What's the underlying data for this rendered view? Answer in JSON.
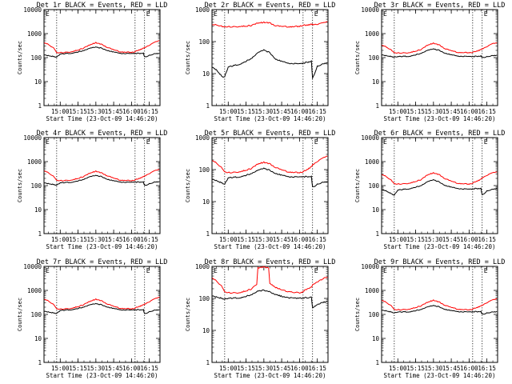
{
  "figure": {
    "background": "#ffffff",
    "events_color": "#000000",
    "lld_color": "#ff0000"
  },
  "chart_data": [
    {
      "type": "line",
      "title": "Det 1r BLACK = Events, RED = LLD",
      "xlabel": "Start Time (23-Oct-09 14:46:20)",
      "ylabel": "Counts/sec",
      "yscale": "log",
      "ylim": [
        1,
        10000
      ],
      "grid": false,
      "xlim": [
        "14:46:20",
        "16:24:00"
      ],
      "x_ticks": [
        "15:00",
        "15:15",
        "15:30",
        "15:45",
        "16:00",
        "16:15"
      ],
      "y_ticks": [
        "1",
        "10",
        "100",
        "1000",
        "10000"
      ],
      "vlines": [
        "14:57:00",
        "16:03:00",
        "16:11:00"
      ],
      "corner_mark": "E",
      "x": [
        "14:46:30",
        "14:50:00",
        "14:55:00",
        "14:57:00",
        "15:00:00",
        "15:10:00",
        "15:20:00",
        "15:25:00",
        "15:30:00",
        "15:35:00",
        "15:40:00",
        "15:50:00",
        "16:00:00",
        "16:03:00",
        "16:05:00",
        "16:10:00",
        "16:11:00",
        "16:15:00",
        "16:20:00",
        "16:23:30"
      ],
      "series": [
        {
          "name": "Events",
          "values": [
            130,
            120,
            110,
            105,
            140,
            155,
            195,
            245,
            275,
            245,
            195,
            150,
            145,
            150,
            150,
            150,
            105,
            125,
            145,
            150
          ]
        },
        {
          "name": "LLD",
          "values": [
            430,
            350,
            240,
            160,
            160,
            175,
            250,
            340,
            420,
            350,
            260,
            175,
            165,
            175,
            200,
            240,
            260,
            330,
            440,
            500
          ]
        }
      ]
    },
    {
      "type": "line",
      "title": "Det 2r BLACK = Events, RED = LLD",
      "xlabel": "Start Time (23-Oct-09 14:46:20)",
      "ylabel": "Counts/sec",
      "yscale": "log",
      "ylim": [
        1,
        1000
      ],
      "grid": false,
      "xlim": [
        "14:46:20",
        "16:24:00"
      ],
      "x_ticks": [
        "15:00",
        "15:15",
        "15:30",
        "15:45",
        "16:00",
        "16:15"
      ],
      "y_ticks": [
        "1",
        "10",
        "100",
        "1000"
      ],
      "vlines": [
        "14:57:00",
        "16:03:00",
        "16:11:00"
      ],
      "corner_mark": "E",
      "x": [
        "14:46:30",
        "14:50:00",
        "14:55:00",
        "14:57:00",
        "15:00:00",
        "15:10:00",
        "15:20:00",
        "15:25:00",
        "15:30:00",
        "15:35:00",
        "15:40:00",
        "15:50:00",
        "16:00:00",
        "16:03:00",
        "16:05:00",
        "16:10:00",
        "16:11:00",
        "16:15:00",
        "16:20:00",
        "16:23:30"
      ],
      "series": [
        {
          "name": "Events",
          "values": [
            16,
            13,
            8,
            8,
            16,
            20,
            30,
            45,
            55,
            45,
            28,
            21,
            20,
            21,
            22,
            24,
            7,
            17,
            20,
            22
          ]
        },
        {
          "name": "LLD",
          "values": [
            350,
            330,
            300,
            290,
            290,
            295,
            320,
            380,
            400,
            380,
            310,
            290,
            300,
            320,
            330,
            340,
            340,
            350,
            380,
            410
          ]
        }
      ]
    },
    {
      "type": "line",
      "title": "Det 3r BLACK = Events, RED = LLD",
      "xlabel": "Start Time (23-Oct-09 14:46:20)",
      "ylabel": "Counts/sec",
      "yscale": "log",
      "ylim": [
        1,
        10000
      ],
      "grid": false,
      "xlim": [
        "14:46:20",
        "16:24:00"
      ],
      "x_ticks": [
        "15:00",
        "15:15",
        "15:30",
        "15:45",
        "16:00",
        "16:15"
      ],
      "y_ticks": [
        "1",
        "10",
        "100",
        "1000",
        "10000"
      ],
      "vlines": [
        "14:57:00",
        "16:03:00",
        "16:11:00"
      ],
      "corner_mark": "E",
      "x": [
        "14:46:30",
        "14:50:00",
        "14:55:00",
        "14:57:00",
        "15:00:00",
        "15:10:00",
        "15:20:00",
        "15:25:00",
        "15:30:00",
        "15:35:00",
        "15:40:00",
        "15:50:00",
        "16:00:00",
        "16:03:00",
        "16:05:00",
        "16:10:00",
        "16:11:00",
        "16:15:00",
        "16:20:00",
        "16:23:30"
      ],
      "series": [
        {
          "name": "Events",
          "values": [
            130,
            120,
            110,
            105,
            110,
            115,
            150,
            200,
            230,
            200,
            150,
            115,
            110,
            110,
            112,
            115,
            100,
            110,
            120,
            125
          ]
        },
        {
          "name": "LLD",
          "values": [
            340,
            280,
            200,
            160,
            155,
            160,
            220,
            330,
            400,
            330,
            230,
            165,
            160,
            165,
            180,
            210,
            230,
            290,
            380,
            400
          ]
        }
      ]
    },
    {
      "type": "line",
      "title": "Det 4r BLACK = Events, RED = LLD",
      "xlabel": "Start Time (23-Oct-09 14:46:20)",
      "ylabel": "Counts/sec",
      "yscale": "log",
      "ylim": [
        1,
        10000
      ],
      "grid": false,
      "xlim": [
        "14:46:20",
        "16:24:00"
      ],
      "x_ticks": [
        "15:00",
        "15:15",
        "15:30",
        "15:45",
        "16:00",
        "16:15"
      ],
      "y_ticks": [
        "1",
        "10",
        "100",
        "1000",
        "10000"
      ],
      "vlines": [
        "14:57:00",
        "16:03:00",
        "16:11:00"
      ],
      "corner_mark": "E",
      "x": [
        "14:46:30",
        "14:50:00",
        "14:55:00",
        "14:57:00",
        "15:00:00",
        "15:10:00",
        "15:20:00",
        "15:25:00",
        "15:30:00",
        "15:35:00",
        "15:40:00",
        "15:50:00",
        "16:00:00",
        "16:03:00",
        "16:05:00",
        "16:10:00",
        "16:11:00",
        "16:15:00",
        "16:20:00",
        "16:23:30"
      ],
      "series": [
        {
          "name": "Events",
          "values": [
            130,
            120,
            110,
            105,
            130,
            140,
            180,
            235,
            265,
            235,
            180,
            140,
            135,
            140,
            140,
            140,
            100,
            120,
            140,
            145
          ]
        },
        {
          "name": "LLD",
          "values": [
            430,
            340,
            230,
            165,
            160,
            170,
            240,
            330,
            400,
            330,
            250,
            170,
            160,
            170,
            190,
            230,
            250,
            320,
            420,
            460
          ]
        }
      ]
    },
    {
      "type": "line",
      "title": "Det 5r BLACK = Events, RED = LLD",
      "xlabel": "Start Time (23-Oct-09 14:46:20)",
      "ylabel": "Counts/sec",
      "yscale": "log",
      "ylim": [
        1,
        1000
      ],
      "grid": false,
      "xlim": [
        "14:46:20",
        "16:24:00"
      ],
      "x_ticks": [
        "15:00",
        "15:15",
        "15:30",
        "15:45",
        "16:00",
        "16:15"
      ],
      "y_ticks": [
        "1",
        "10",
        "100",
        "1000"
      ],
      "vlines": [
        "14:57:00",
        "16:03:00",
        "16:11:00"
      ],
      "corner_mark": "E",
      "x": [
        "14:46:30",
        "14:50:00",
        "14:55:00",
        "14:57:00",
        "15:00:00",
        "15:10:00",
        "15:20:00",
        "15:25:00",
        "15:30:00",
        "15:35:00",
        "15:40:00",
        "15:50:00",
        "16:00:00",
        "16:03:00",
        "16:05:00",
        "16:10:00",
        "16:11:00",
        "16:15:00",
        "16:20:00",
        "16:23:30"
      ],
      "series": [
        {
          "name": "Events",
          "values": [
            50,
            45,
            38,
            35,
            55,
            60,
            75,
            95,
            110,
            95,
            75,
            60,
            58,
            60,
            60,
            60,
            28,
            35,
            40,
            42
          ]
        },
        {
          "name": "LLD",
          "values": [
            200,
            160,
            110,
            85,
            80,
            85,
            110,
            150,
            170,
            150,
            115,
            85,
            80,
            85,
            95,
            120,
            140,
            180,
            230,
            260
          ]
        }
      ]
    },
    {
      "type": "line",
      "title": "Det 6r BLACK = Events, RED = LLD",
      "xlabel": "Start Time (23-Oct-09 14:46:20)",
      "ylabel": "Counts/sec",
      "yscale": "log",
      "ylim": [
        1,
        10000
      ],
      "grid": false,
      "xlim": [
        "14:46:20",
        "16:24:00"
      ],
      "x_ticks": [
        "15:00",
        "15:15",
        "15:30",
        "15:45",
        "16:00",
        "16:15"
      ],
      "y_ticks": [
        "1",
        "10",
        "100",
        "1000",
        "10000"
      ],
      "vlines": [
        "14:57:00",
        "16:03:00",
        "16:11:00"
      ],
      "corner_mark": "E",
      "x": [
        "14:46:30",
        "14:50:00",
        "14:55:00",
        "14:57:00",
        "15:00:00",
        "15:10:00",
        "15:20:00",
        "15:25:00",
        "15:30:00",
        "15:35:00",
        "15:40:00",
        "15:50:00",
        "16:00:00",
        "16:03:00",
        "16:05:00",
        "16:10:00",
        "16:11:00",
        "16:15:00",
        "16:20:00",
        "16:23:30"
      ],
      "series": [
        {
          "name": "Events",
          "values": [
            70,
            60,
            45,
            40,
            65,
            75,
            100,
            145,
            175,
            140,
            100,
            75,
            70,
            72,
            75,
            75,
            40,
            60,
            70,
            75
          ]
        },
        {
          "name": "LLD",
          "values": [
            300,
            240,
            160,
            120,
            115,
            125,
            180,
            280,
            340,
            280,
            190,
            125,
            115,
            125,
            145,
            180,
            210,
            270,
            340,
            360
          ]
        }
      ]
    },
    {
      "type": "line",
      "title": "Det 7r BLACK = Events, RED = LLD",
      "xlabel": "Start Time (23-Oct-09 14:46:20)",
      "ylabel": "Counts/sec",
      "yscale": "log",
      "ylim": [
        1,
        10000
      ],
      "grid": false,
      "xlim": [
        "14:46:20",
        "16:24:00"
      ],
      "x_ticks": [
        "15:00",
        "15:15",
        "15:30",
        "15:45",
        "16:00",
        "16:15"
      ],
      "y_ticks": [
        "1",
        "10",
        "100",
        "1000",
        "10000"
      ],
      "vlines": [
        "14:57:00",
        "16:03:00",
        "16:11:00"
      ],
      "corner_mark": "E",
      "x": [
        "14:46:30",
        "14:50:00",
        "14:55:00",
        "14:57:00",
        "15:00:00",
        "15:10:00",
        "15:20:00",
        "15:25:00",
        "15:30:00",
        "15:35:00",
        "15:40:00",
        "15:50:00",
        "16:00:00",
        "16:03:00",
        "16:05:00",
        "16:10:00",
        "16:11:00",
        "16:15:00",
        "16:20:00",
        "16:23:30"
      ],
      "series": [
        {
          "name": "Events",
          "values": [
            135,
            125,
            115,
            110,
            145,
            160,
            200,
            250,
            280,
            250,
            200,
            155,
            150,
            155,
            155,
            155,
            105,
            130,
            150,
            155
          ]
        },
        {
          "name": "LLD",
          "values": [
            450,
            360,
            245,
            170,
            165,
            180,
            255,
            350,
            430,
            360,
            265,
            180,
            170,
            180,
            205,
            245,
            265,
            340,
            450,
            510
          ]
        }
      ]
    },
    {
      "type": "line",
      "title": "Det 8r BLACK = Events, RED = LLD",
      "xlabel": "Start Time (23-Oct-09 14:46:20)",
      "ylabel": "Counts/sec",
      "yscale": "log",
      "ylim": [
        1,
        1000
      ],
      "grid": false,
      "xlim": [
        "14:46:20",
        "16:24:00"
      ],
      "x_ticks": [
        "15:00",
        "15:15",
        "15:30",
        "15:45",
        "16:00",
        "16:15"
      ],
      "y_ticks": [
        "1",
        "10",
        "100",
        "1000"
      ],
      "vlines": [
        "14:57:00",
        "16:03:00",
        "16:11:00"
      ],
      "corner_mark": "E",
      "x": [
        "14:46:30",
        "14:50:00",
        "14:55:00",
        "14:57:00",
        "15:00:00",
        "15:10:00",
        "15:20:00",
        "15:24:00",
        "15:25:00",
        "15:30:00",
        "15:34:00",
        "15:35:00",
        "15:40:00",
        "15:50:00",
        "16:00:00",
        "16:03:00",
        "16:05:00",
        "16:10:00",
        "16:11:00",
        "16:15:00",
        "16:20:00",
        "16:23:30"
      ],
      "series": [
        {
          "name": "Events",
          "values": [
            120,
            110,
            100,
            95,
            100,
            105,
            130,
            160,
            170,
            180,
            165,
            160,
            130,
            105,
            100,
            102,
            105,
            108,
            50,
            65,
            75,
            80
          ]
        },
        {
          "name": "LLD",
          "values": [
            450,
            350,
            230,
            160,
            150,
            150,
            200,
            280,
            900,
            950,
            900,
            300,
            220,
            160,
            150,
            160,
            185,
            230,
            260,
            320,
            420,
            470
          ]
        }
      ]
    },
    {
      "type": "line",
      "title": "Det 9r BLACK = Events, RED = LLD",
      "xlabel": "Start Time (23-Oct-09 14:46:20)",
      "ylabel": "Counts/sec",
      "yscale": "log",
      "ylim": [
        1,
        10000
      ],
      "grid": false,
      "xlim": [
        "14:46:20",
        "16:24:00"
      ],
      "x_ticks": [
        "15:00",
        "15:15",
        "15:30",
        "15:45",
        "16:00",
        "16:15"
      ],
      "y_ticks": [
        "1",
        "10",
        "100",
        "1000",
        "10000"
      ],
      "vlines": [
        "14:57:00",
        "16:03:00",
        "16:11:00"
      ],
      "corner_mark": "E",
      "x": [
        "14:46:30",
        "14:50:00",
        "14:55:00",
        "14:57:00",
        "15:00:00",
        "15:10:00",
        "15:20:00",
        "15:25:00",
        "15:30:00",
        "15:35:00",
        "15:40:00",
        "15:50:00",
        "16:00:00",
        "16:03:00",
        "16:05:00",
        "16:10:00",
        "16:11:00",
        "16:15:00",
        "16:20:00",
        "16:23:30"
      ],
      "series": [
        {
          "name": "Events",
          "values": [
            150,
            140,
            125,
            115,
            125,
            130,
            160,
            205,
            235,
            205,
            160,
            130,
            125,
            127,
            130,
            130,
            100,
            115,
            125,
            130
          ]
        },
        {
          "name": "LLD",
          "values": [
            400,
            320,
            220,
            160,
            155,
            165,
            230,
            320,
            390,
            320,
            235,
            165,
            155,
            165,
            185,
            220,
            240,
            310,
            400,
            440
          ]
        }
      ]
    }
  ]
}
